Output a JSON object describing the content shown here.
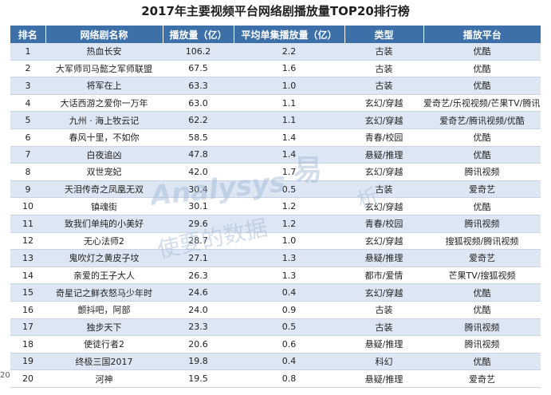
{
  "title": "2017年主要视频平台网络剧播放量TOP20排行榜",
  "headers": [
    "排名",
    "网络剧名称",
    "播放量（亿）",
    "平均单集播放量（亿）",
    "类型",
    "播放平台"
  ],
  "rows": [
    {
      "rank": "1",
      "name": "热血长安",
      "plays": "106.2",
      "avg": "2.2",
      "genre": "古装",
      "platform": "优酷"
    },
    {
      "rank": "2",
      "name": "大军师司马懿之军师联盟",
      "plays": "67.5",
      "avg": "1.6",
      "genre": "古装",
      "platform": "优酷"
    },
    {
      "rank": "3",
      "name": "将军在上",
      "plays": "63.3",
      "avg": "1.0",
      "genre": "古装",
      "platform": "优酷"
    },
    {
      "rank": "4",
      "name": "大话西游之爱你一万年",
      "plays": "63.0",
      "avg": "1.1",
      "genre": "玄幻/穿越",
      "platform": "爱奇艺/乐视视频/芒果TV/腾讯视频"
    },
    {
      "rank": "5",
      "name": "九州 · 海上牧云记",
      "plays": "62.2",
      "avg": "1.1",
      "genre": "玄幻/穿越",
      "platform": "爱奇艺/腾讯视频/优酷"
    },
    {
      "rank": "6",
      "name": "春风十里，不如你",
      "plays": "58.5",
      "avg": "1.4",
      "genre": "青春/校园",
      "platform": "优酷"
    },
    {
      "rank": "7",
      "name": "白夜追凶",
      "plays": "47.8",
      "avg": "1.4",
      "genre": "悬疑/推理",
      "platform": "优酷"
    },
    {
      "rank": "8",
      "name": "双世宠妃",
      "plays": "42.0",
      "avg": "1.7",
      "genre": "玄幻/穿越",
      "platform": "腾讯视频"
    },
    {
      "rank": "9",
      "name": "天泪传奇之凤凰无双",
      "plays": "30.4",
      "avg": "0.5",
      "genre": "古装",
      "platform": "爱奇艺"
    },
    {
      "rank": "10",
      "name": "镇魂街",
      "plays": "30.1",
      "avg": "1.2",
      "genre": "玄幻/穿越",
      "platform": "优酷"
    },
    {
      "rank": "11",
      "name": "致我们单纯的小美好",
      "plays": "29.6",
      "avg": "1.2",
      "genre": "青春/校园",
      "platform": "腾讯视频"
    },
    {
      "rank": "12",
      "name": "无心法师2",
      "plays": "28.7",
      "avg": "1.0",
      "genre": "玄幻/穿越",
      "platform": "搜狐视频/腾讯视频"
    },
    {
      "rank": "13",
      "name": "鬼吹灯之黄皮子坟",
      "plays": "27.1",
      "avg": "1.3",
      "genre": "悬疑/推理",
      "platform": "爱奇艺"
    },
    {
      "rank": "14",
      "name": "亲爱的王子大人",
      "plays": "26.3",
      "avg": "1.3",
      "genre": "都市/爱情",
      "platform": "芒果TV/搜狐视频"
    },
    {
      "rank": "15",
      "name": "奇星记之鲜衣怒马少年时",
      "plays": "24.6",
      "avg": "0.4",
      "genre": "玄幻/穿越",
      "platform": "优酷"
    },
    {
      "rank": "16",
      "name": "颤抖吧，阿部",
      "plays": "24.0",
      "avg": "0.9",
      "genre": "古装",
      "platform": "优酷"
    },
    {
      "rank": "17",
      "name": "独步天下",
      "plays": "23.3",
      "avg": "0.5",
      "genre": "古装",
      "platform": "腾讯视频"
    },
    {
      "rank": "18",
      "name": "使徒行者2",
      "plays": "20.6",
      "avg": "0.6",
      "genre": "悬疑/推理",
      "platform": "腾讯视频"
    },
    {
      "rank": "19",
      "name": "终极三国2017",
      "plays": "19.8",
      "avg": "0.4",
      "genre": "科幻",
      "platform": "优酷"
    },
    {
      "rank": "20",
      "name": "河神",
      "plays": "19.5",
      "avg": "0.8",
      "genre": "悬疑/推理",
      "platform": "爱奇艺"
    }
  ],
  "watermark": {
    "brand": "Analysys",
    "cn_big": "易",
    "cn_small": "析",
    "slogan": "使要的数据"
  },
  "footer": "20",
  "colors": {
    "header_bg": "#3d6fa8",
    "row_alt": "#dde6f3",
    "watermark": "#9fb8d6"
  }
}
